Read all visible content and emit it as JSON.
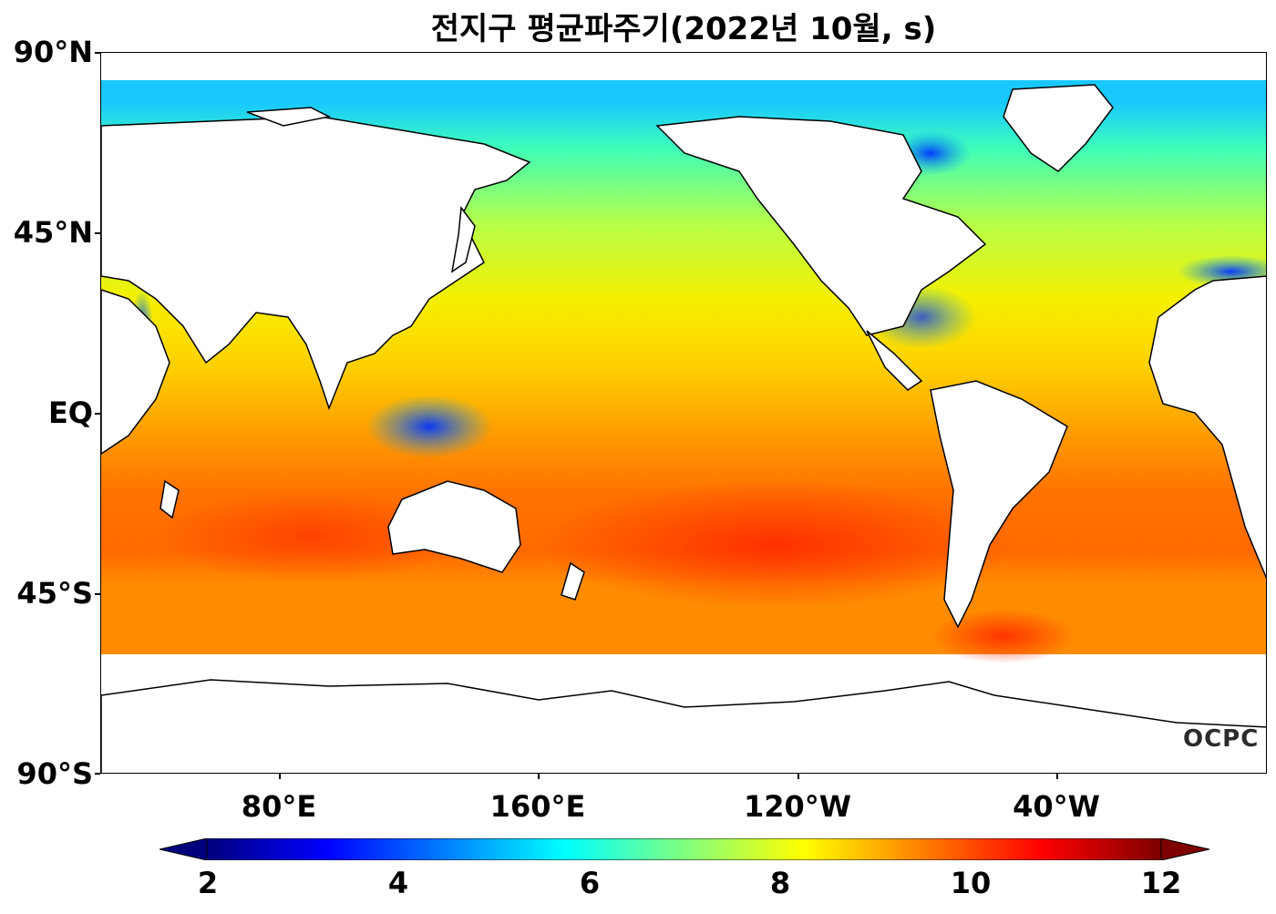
{
  "title": "전지구 평균파주기(2022년 10월, s)",
  "y_ticks": [
    "90°N",
    "45°N",
    "EQ",
    "45°S",
    "90°S"
  ],
  "x_ticks": [
    "80°E",
    "160°E",
    "120°W",
    "40°W"
  ],
  "logo": "OCPC",
  "colorbar": {
    "ticks": [
      "2",
      "4",
      "6",
      "8",
      "10",
      "12"
    ],
    "min": 2,
    "max": 12,
    "colormap": "jet",
    "colors": [
      "#00007f",
      "#0000ff",
      "#007fff",
      "#00ffff",
      "#7fff7f",
      "#ffff00",
      "#ff7f00",
      "#ff0000",
      "#7f0000"
    ]
  },
  "map": {
    "projection": "PlateCarree",
    "central_longitude": "-150°",
    "land_color": "#ffffff",
    "coastline_color": "#000000"
  }
}
